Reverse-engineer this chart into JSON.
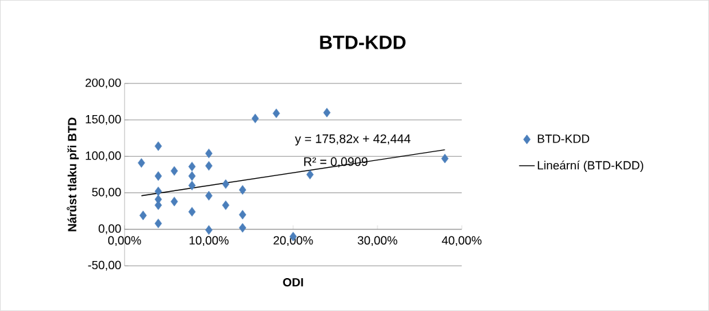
{
  "chart_data": {
    "type": "scatter",
    "title": "BTD-KDD",
    "xlabel": "ODI",
    "ylabel": "Nárůst tlaku při BTD",
    "annotations": [
      "y = 175,82x + 42,444",
      "R² = 0,0909"
    ],
    "xlim": [
      0,
      0.4
    ],
    "ylim": [
      -50,
      200
    ],
    "xticks": [
      {
        "value": 0,
        "label": "0,00%"
      },
      {
        "value": 0.1,
        "label": "10,00%"
      },
      {
        "value": 0.2,
        "label": "20,00%"
      },
      {
        "value": 0.3,
        "label": "30,00%"
      },
      {
        "value": 0.4,
        "label": "40,00%"
      }
    ],
    "yticks": [
      {
        "value": -50,
        "label": "-50,00"
      },
      {
        "value": 0,
        "label": "0,00"
      },
      {
        "value": 50,
        "label": "50,00"
      },
      {
        "value": 100,
        "label": "100,00"
      },
      {
        "value": 150,
        "label": "150,00"
      },
      {
        "value": 200,
        "label": "200,00"
      }
    ],
    "grid": "y",
    "legend": "right",
    "marker": "diamond",
    "series": [
      {
        "name": "BTD-KDD",
        "color": "#4a7ebb",
        "x": [
          0.02,
          0.022,
          0.04,
          0.04,
          0.04,
          0.04,
          0.04,
          0.04,
          0.059,
          0.059,
          0.08,
          0.08,
          0.08,
          0.08,
          0.1,
          0.1,
          0.1,
          0.1,
          0.12,
          0.12,
          0.14,
          0.14,
          0.14,
          0.155,
          0.18,
          0.2,
          0.22,
          0.24,
          0.38
        ],
        "values": [
          91,
          19,
          114,
          73,
          52,
          41,
          33,
          8,
          80,
          38,
          86,
          73,
          60,
          24,
          104,
          87,
          46,
          -1,
          62,
          33,
          54,
          20,
          2,
          152,
          159,
          -10,
          75,
          160,
          97
        ]
      },
      {
        "name": "Lineární (BTD-KDD)",
        "type": "line",
        "color": "#000000",
        "marker": "none",
        "x": [
          0.02,
          0.38
        ],
        "values": [
          46,
          109
        ]
      }
    ]
  }
}
